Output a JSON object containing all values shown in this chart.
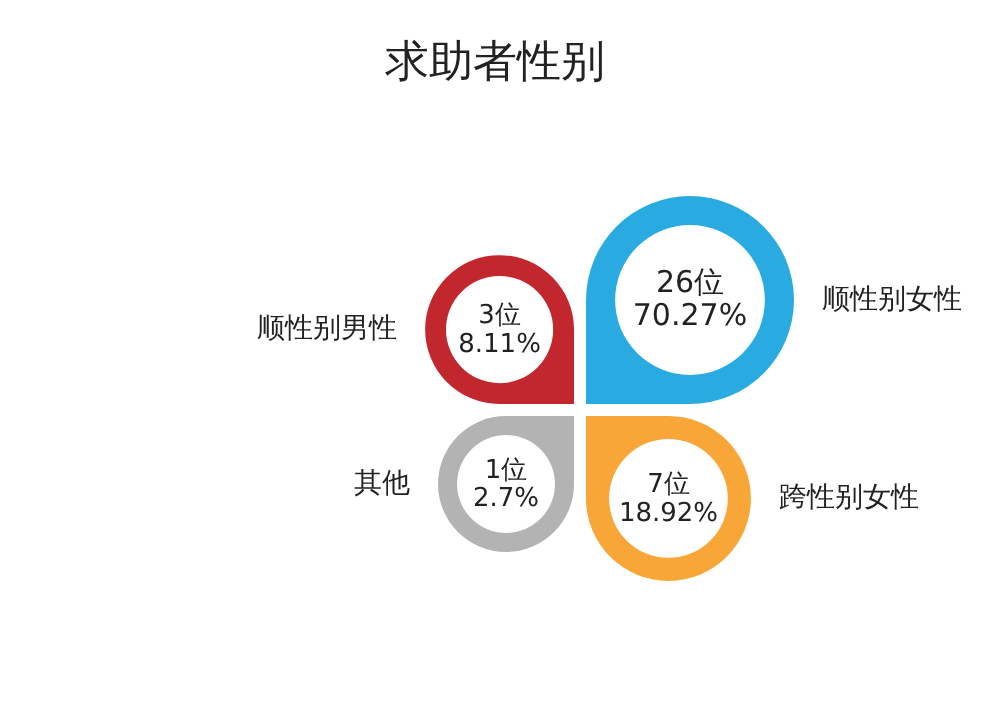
{
  "chart_data": {
    "type": "other",
    "title": "求助者性别",
    "categories": [
      "顺性别男性",
      "顺性别女性",
      "其他",
      "跨性别女性"
    ],
    "values": [
      3,
      26,
      1,
      7
    ],
    "value_labels": [
      "3位\n8.11%",
      "26位\n70.27%",
      "1位\n2.7%",
      "7位\n18.92%"
    ],
    "colors": [
      "#c1272d",
      "#29abe2",
      "#b3b3b3",
      "#f7a637"
    ]
  }
}
